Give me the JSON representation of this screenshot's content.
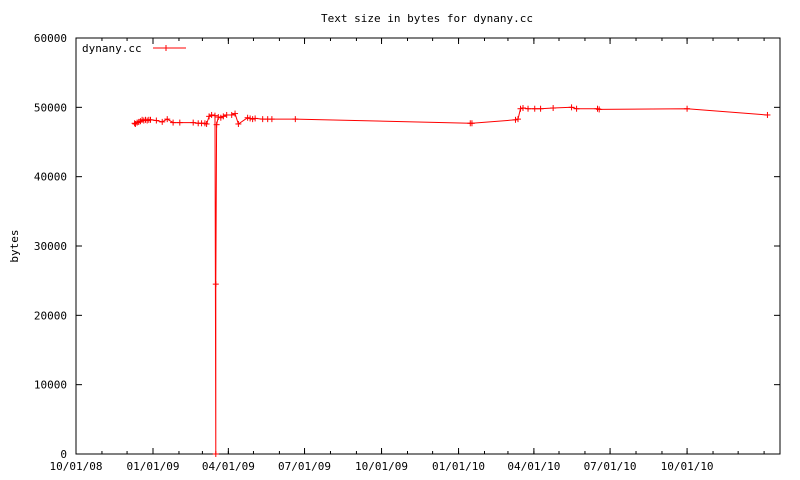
{
  "chart_data": {
    "type": "line",
    "title": "Text size in bytes for dynany.cc",
    "xlabel": "",
    "ylabel": "bytes",
    "xlim": [
      "2008-10-01",
      "2011-01-20"
    ],
    "ylim": [
      0,
      60000
    ],
    "y_ticks": [
      0,
      10000,
      20000,
      30000,
      40000,
      50000,
      60000
    ],
    "x_ticks": [
      "10/01/08",
      "01/01/09",
      "04/01/09",
      "07/01/09",
      "10/01/09",
      "01/01/10",
      "04/01/10",
      "07/01/10",
      "10/01/10"
    ],
    "x_tick_dates": [
      "2008-10-01",
      "2009-01-01",
      "2009-04-01",
      "2009-07-01",
      "2009-10-01",
      "2010-01-01",
      "2010-04-01",
      "2010-07-01",
      "2010-10-01"
    ],
    "grid": false,
    "legend": "top-left",
    "color": "#ff0000",
    "series": [
      {
        "name": "dynany.cc",
        "points": [
          [
            "2008-12-10",
            47700
          ],
          [
            "2008-12-11",
            47600
          ],
          [
            "2008-12-13",
            47800
          ],
          [
            "2008-12-15",
            47900
          ],
          [
            "2008-12-17",
            48000
          ],
          [
            "2008-12-19",
            48200
          ],
          [
            "2008-12-21",
            48100
          ],
          [
            "2008-12-23",
            48200
          ],
          [
            "2008-12-25",
            48100
          ],
          [
            "2008-12-27",
            48200
          ],
          [
            "2008-12-29",
            48200
          ],
          [
            "2009-01-05",
            48100
          ],
          [
            "2009-01-12",
            47900
          ],
          [
            "2009-01-18",
            48300
          ],
          [
            "2009-01-25",
            47800
          ],
          [
            "2009-02-02",
            47800
          ],
          [
            "2009-02-18",
            47800
          ],
          [
            "2009-02-24",
            47700
          ],
          [
            "2009-02-28",
            47700
          ],
          [
            "2009-03-04",
            47700
          ],
          [
            "2009-03-06",
            47600
          ],
          [
            "2009-03-09",
            48700
          ],
          [
            "2009-03-12",
            48900
          ],
          [
            "2009-03-16",
            48800
          ],
          [
            "2009-03-17",
            0
          ],
          [
            "2009-03-17",
            24500
          ],
          [
            "2009-03-18",
            47500
          ],
          [
            "2009-03-20",
            48600
          ],
          [
            "2009-03-23",
            48500
          ],
          [
            "2009-03-26",
            48700
          ],
          [
            "2009-03-30",
            48900
          ],
          [
            "2009-04-05",
            48900
          ],
          [
            "2009-04-09",
            49100
          ],
          [
            "2009-04-13",
            47600
          ],
          [
            "2009-04-24",
            48500
          ],
          [
            "2009-04-27",
            48400
          ],
          [
            "2009-04-30",
            48300
          ],
          [
            "2009-05-03",
            48400
          ],
          [
            "2009-05-12",
            48300
          ],
          [
            "2009-05-18",
            48300
          ],
          [
            "2009-05-23",
            48300
          ],
          [
            "2009-06-20",
            48300
          ],
          [
            "2010-01-15",
            47700
          ],
          [
            "2010-01-17",
            47700
          ],
          [
            "2010-03-10",
            48200
          ],
          [
            "2010-03-13",
            48300
          ],
          [
            "2010-03-16",
            49800
          ],
          [
            "2010-03-19",
            49900
          ],
          [
            "2010-03-25",
            49800
          ],
          [
            "2010-04-02",
            49800
          ],
          [
            "2010-04-09",
            49800
          ],
          [
            "2010-04-24",
            49900
          ],
          [
            "2010-05-16",
            50000
          ],
          [
            "2010-05-22",
            49800
          ],
          [
            "2010-06-16",
            49800
          ],
          [
            "2010-06-18",
            49700
          ],
          [
            "2010-10-01",
            49800
          ],
          [
            "2011-01-05",
            48900
          ]
        ]
      }
    ]
  }
}
